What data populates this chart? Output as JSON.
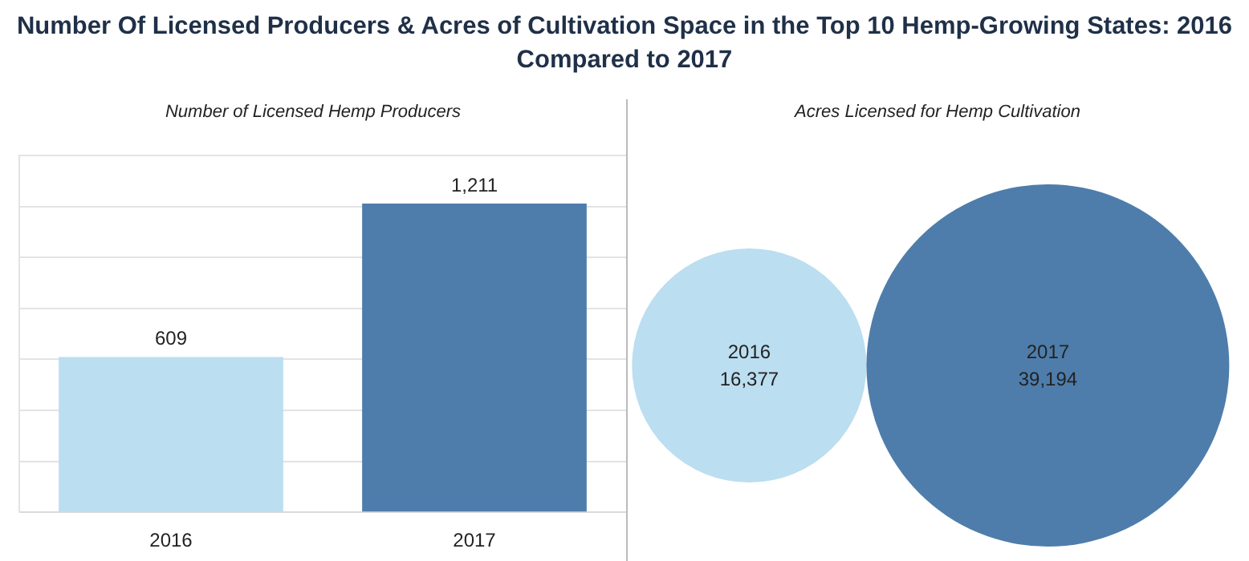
{
  "chart_data": [
    {
      "type": "bar",
      "title": "Number Of Licensed Producers & Acres of Cultivation Space in the Top 10 Hemp-Growing States: 2016 Compared to 2017",
      "subtitle": "Number of Licensed Hemp Producers",
      "categories": [
        "2016",
        "2017"
      ],
      "values": [
        609,
        1211
      ],
      "colors": [
        "#bbdef0",
        "#4e7dab"
      ],
      "value_labels": [
        "609",
        "1,211"
      ],
      "ylim": [
        0,
        1400
      ],
      "yticks": [
        {
          "value": 0,
          "label": null
        },
        {
          "value": 200,
          "label": null
        },
        {
          "value": 400,
          "label": null
        },
        {
          "value": 600,
          "label": null
        },
        {
          "value": 800,
          "label": null
        },
        {
          "value": 1000,
          "label": null
        },
        {
          "value": 1200,
          "label": null
        },
        {
          "value": 1400,
          "label": null
        }
      ],
      "grid": "y",
      "tick_labels": "x"
    },
    {
      "type": "other",
      "title": "Acres Licensed for Hemp Cultivation",
      "categories": [
        "2016",
        "2017"
      ],
      "values": [
        16377,
        39194
      ],
      "colors": [
        "#bbdef0",
        "#4e7dab"
      ],
      "value_labels": [
        "16,377",
        "39,194"
      ]
    }
  ]
}
